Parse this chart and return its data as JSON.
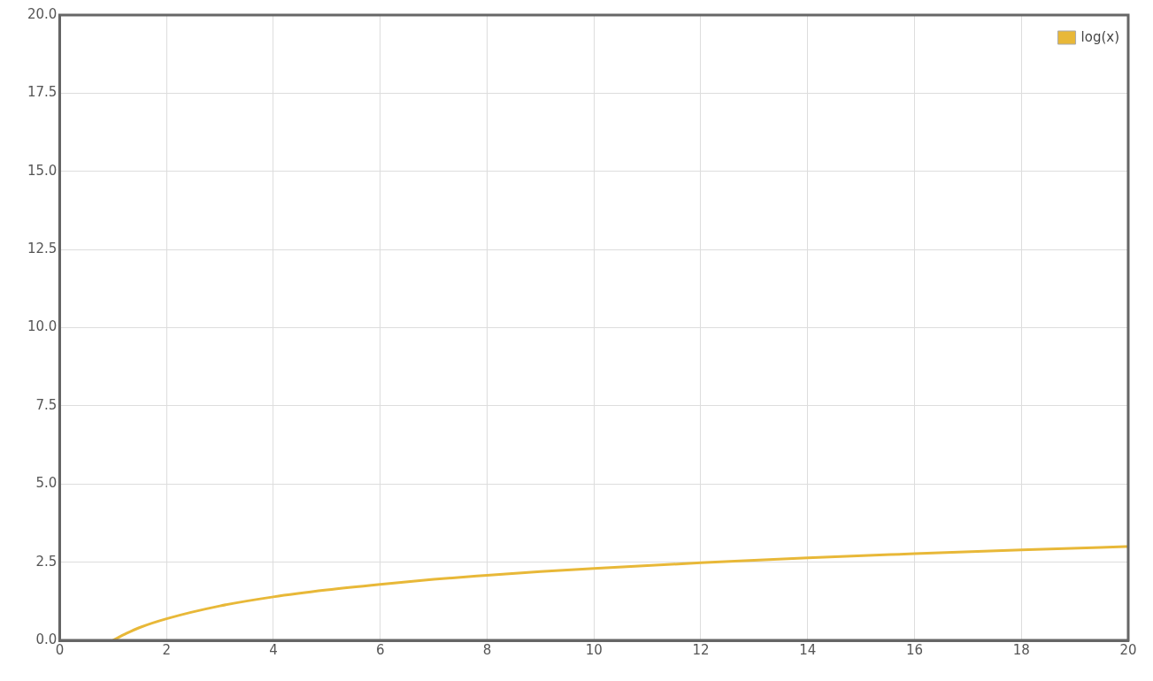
{
  "chart_data": {
    "type": "line",
    "x": [
      1,
      1.25,
      1.5,
      2,
      3,
      4,
      5,
      6,
      7,
      8,
      9,
      10,
      12,
      14,
      16,
      18,
      20
    ],
    "series": [
      {
        "name": "log(x)",
        "color": "#e8b838",
        "values": [
          0,
          0.22,
          0.41,
          0.69,
          1.1,
          1.39,
          1.61,
          1.79,
          1.95,
          2.08,
          2.2,
          2.3,
          2.48,
          2.64,
          2.77,
          2.89,
          3.0
        ]
      }
    ],
    "xlim": [
      0,
      20
    ],
    "xticks": [
      0,
      2,
      4,
      6,
      8,
      10,
      12,
      14,
      16,
      18,
      20
    ],
    "ylim": [
      0,
      20
    ],
    "yticks": [
      {
        "value": 0,
        "label": "0.0"
      },
      {
        "value": 2.5,
        "label": "2.5"
      },
      {
        "value": 5,
        "label": "5.0"
      },
      {
        "value": 7.5,
        "label": "7.5"
      },
      {
        "value": 10,
        "label": "10.0"
      },
      {
        "value": 12.5,
        "label": "12.5"
      },
      {
        "value": 15,
        "label": "15.0"
      },
      {
        "value": 17.5,
        "label": "17.5"
      },
      {
        "value": 20,
        "label": "20.0"
      }
    ],
    "grid": true,
    "legend": "top right",
    "marker": "none",
    "line_style": "solid"
  }
}
